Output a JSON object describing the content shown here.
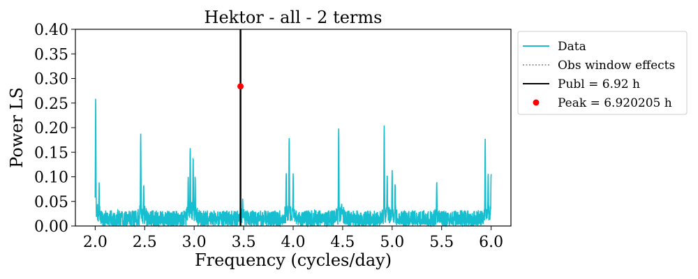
{
  "chart_data": {
    "type": "line",
    "title": "Hektor - all - 2 terms",
    "xlabel": "Frequency (cycles/day)",
    "ylabel": "Power LS",
    "xlim": [
      1.8,
      6.2
    ],
    "ylim": [
      0.0,
      0.4
    ],
    "xticks": [
      "2.0",
      "2.5",
      "3.0",
      "3.5",
      "4.0",
      "4.5",
      "5.0",
      "5.5",
      "6.0"
    ],
    "yticks": [
      "0.00",
      "0.05",
      "0.10",
      "0.15",
      "0.20",
      "0.25",
      "0.30",
      "0.35",
      "0.40"
    ],
    "grid": false,
    "legend_position": "outside-right-top",
    "series": [
      {
        "name": "Data",
        "style": "solid",
        "color": "#17becf",
        "x_range": [
          2.0,
          6.0
        ],
        "baseline_noise": [
          0.0,
          0.04
        ],
        "peaks": [
          {
            "x": 2.005,
            "y": 0.252
          },
          {
            "x": 2.04,
            "y": 0.078
          },
          {
            "x": 2.46,
            "y": 0.177
          },
          {
            "x": 2.49,
            "y": 0.074
          },
          {
            "x": 2.94,
            "y": 0.085
          },
          {
            "x": 2.96,
            "y": 0.155
          },
          {
            "x": 2.99,
            "y": 0.128
          },
          {
            "x": 3.01,
            "y": 0.098
          },
          {
            "x": 3.49,
            "y": 0.053
          },
          {
            "x": 3.96,
            "y": 0.173
          },
          {
            "x": 3.93,
            "y": 0.105
          },
          {
            "x": 4.0,
            "y": 0.095
          },
          {
            "x": 4.46,
            "y": 0.196
          },
          {
            "x": 4.49,
            "y": 0.045
          },
          {
            "x": 4.92,
            "y": 0.197
          },
          {
            "x": 4.95,
            "y": 0.1
          },
          {
            "x": 5.0,
            "y": 0.103
          },
          {
            "x": 5.03,
            "y": 0.08
          },
          {
            "x": 5.45,
            "y": 0.085
          },
          {
            "x": 5.94,
            "y": 0.165
          },
          {
            "x": 5.97,
            "y": 0.098
          },
          {
            "x": 6.0,
            "y": 0.105
          }
        ]
      },
      {
        "name": "Obs window effects",
        "style": "dotted",
        "color": "#7f7f7f"
      },
      {
        "name": "Publl = 6.92 h",
        "style": "vline",
        "color": "#000000",
        "x": 3.4682
      },
      {
        "name": "Peak = 6.920205 h",
        "style": "marker",
        "color": "#ff0000",
        "x": 3.468,
        "y": 0.284
      }
    ],
    "legend": [
      {
        "label": "Data",
        "kind": "solid",
        "color": "#17becf"
      },
      {
        "label": "Obs window effects",
        "kind": "dotted",
        "color": "#7f7f7f"
      },
      {
        "label": "Publ = 6.92 h",
        "kind": "solid",
        "color": "#000000"
      },
      {
        "label": "Peak = 6.920205 h",
        "kind": "marker",
        "color": "#ff0000"
      }
    ]
  }
}
